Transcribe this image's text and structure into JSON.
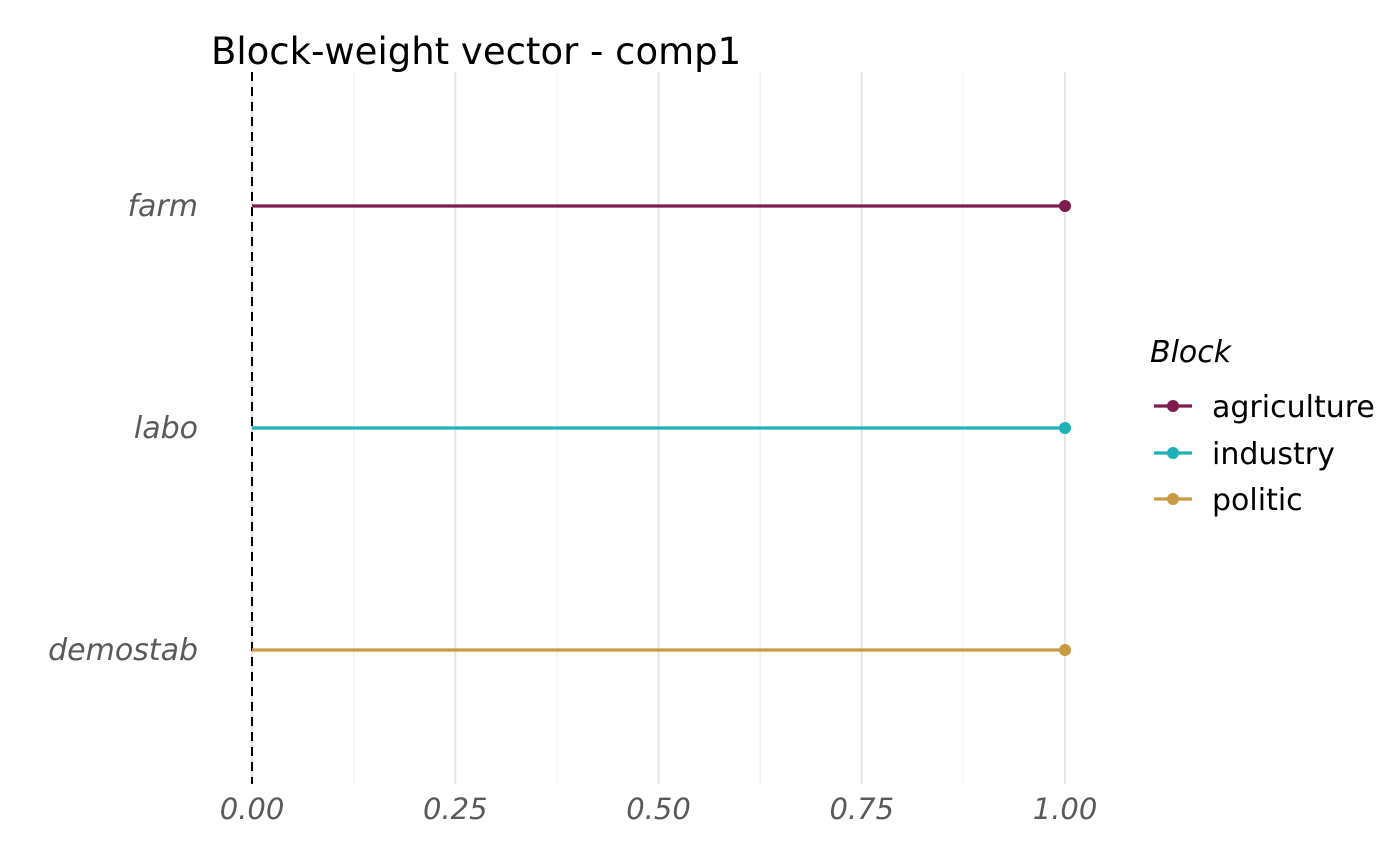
{
  "chart_data": {
    "type": "lollipop",
    "title": "Block-weight vector - comp1",
    "xlabel": "",
    "ylabel": "",
    "xlim": [
      0,
      1
    ],
    "x_ticks": [
      "0.00",
      "0.25",
      "0.50",
      "0.75",
      "1.00"
    ],
    "categories": [
      "farm",
      "labo",
      "demostab"
    ],
    "values": [
      1,
      1,
      1
    ],
    "blocks": [
      "agriculture",
      "industry",
      "politic"
    ],
    "reference_line": 0,
    "grid": "vertical",
    "legend": {
      "title": "Block",
      "position": "right",
      "entries": [
        {
          "name": "agriculture",
          "color": "#7d1d4f"
        },
        {
          "name": "industry",
          "color": "#1fb1b5"
        },
        {
          "name": "politic",
          "color": "#c99a44"
        }
      ]
    }
  }
}
